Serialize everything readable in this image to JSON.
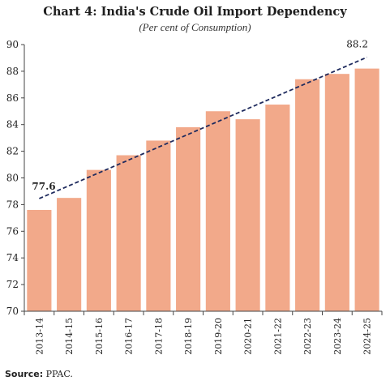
{
  "chart_data": {
    "type": "bar",
    "title": "Chart 4: India's Crude Oil Import Dependency",
    "subtitle": "(Per cent of Consumption)",
    "categories": [
      "2013-14",
      "2014-15",
      "2015-16",
      "2016-17",
      "2017-18",
      "2018-19",
      "2019-20",
      "2020-21",
      "2021-22",
      "2022-23",
      "2023-24",
      "2024-25"
    ],
    "values": [
      77.6,
      78.5,
      80.6,
      81.7,
      82.8,
      83.8,
      85.0,
      84.4,
      85.5,
      87.4,
      87.8,
      88.2
    ],
    "ylim": [
      70,
      90
    ],
    "yticks": [
      "70",
      "72",
      "74",
      "76",
      "78",
      "80",
      "82",
      "84",
      "86",
      "88",
      "90"
    ],
    "xlabel": "",
    "ylabel": "",
    "trendline": {
      "style": "dashed",
      "start_value": 77.6,
      "end_value": 88.2
    },
    "annotations": [
      {
        "text": "77.6",
        "category": "2013-14"
      },
      {
        "text": "88.2",
        "category": "2024-25"
      }
    ],
    "grid": false,
    "legend": "none",
    "bar_color": "#f2a98a",
    "trend_color": "#1f2b5e"
  },
  "source": {
    "label": "Source:",
    "text": "PPAC."
  }
}
